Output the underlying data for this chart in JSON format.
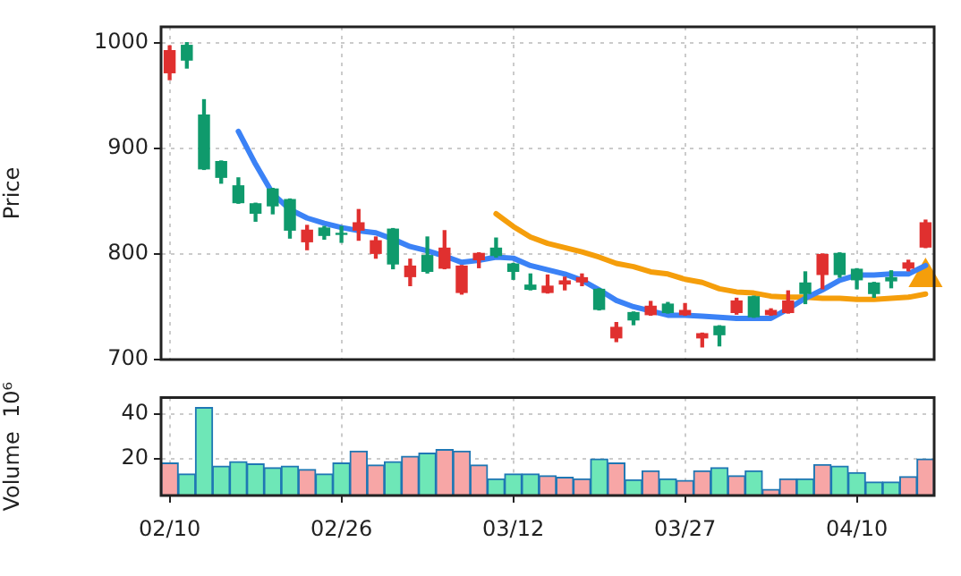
{
  "chart_data": [
    {
      "type": "candlestick",
      "ylabel": "Price",
      "categories": [
        null,
        null,
        null,
        null,
        null,
        null,
        null,
        null,
        null,
        null,
        null,
        null,
        null,
        null,
        null,
        null,
        null,
        null,
        null,
        null,
        null,
        null,
        null,
        null,
        null,
        null,
        null,
        null,
        null,
        null,
        null,
        null,
        null,
        null,
        null,
        null,
        null,
        null,
        null,
        null,
        null,
        null,
        null,
        null,
        null
      ],
      "ohlc": [
        [
          993,
          997,
          965,
          971
        ],
        [
          983,
          1000,
          976,
          998
        ],
        [
          880,
          946,
          880,
          932
        ],
        [
          872,
          888,
          867,
          888
        ],
        [
          848,
          872,
          848,
          865
        ],
        [
          838,
          848,
          831,
          848
        ],
        [
          845,
          862,
          838,
          862
        ],
        [
          822,
          852,
          815,
          852
        ],
        [
          823,
          827,
          804,
          811
        ],
        [
          817,
          826,
          814,
          825
        ],
        [
          818,
          826,
          811,
          820
        ],
        [
          830,
          842,
          813,
          822
        ],
        [
          813,
          816,
          796,
          800
        ],
        [
          790,
          824,
          786,
          824
        ],
        [
          789,
          795,
          770,
          778
        ],
        [
          783,
          816,
          782,
          799
        ],
        [
          806,
          822,
          786,
          786
        ],
        [
          789,
          789,
          762,
          763
        ],
        [
          801,
          801,
          787,
          794
        ],
        [
          798,
          815,
          797,
          806
        ],
        [
          783,
          791,
          776,
          791
        ],
        [
          766,
          781,
          766,
          771
        ],
        [
          770,
          780,
          763,
          763
        ],
        [
          775,
          778,
          766,
          771
        ],
        [
          778,
          781,
          770,
          773
        ],
        [
          747,
          767,
          747,
          767
        ],
        [
          731,
          735,
          717,
          720
        ],
        [
          737,
          745,
          733,
          745
        ],
        [
          751,
          755,
          742,
          742
        ],
        [
          744,
          754,
          744,
          753
        ],
        [
          747,
          753,
          742,
          742
        ],
        [
          725,
          725,
          712,
          720
        ],
        [
          723,
          732,
          713,
          732
        ],
        [
          756,
          758,
          743,
          744
        ],
        [
          740,
          760,
          740,
          760
        ],
        [
          747,
          748,
          742,
          742
        ],
        [
          756,
          765,
          744,
          744
        ],
        [
          762,
          783,
          753,
          773
        ],
        [
          800,
          800,
          767,
          780
        ],
        [
          780,
          801,
          778,
          801
        ],
        [
          775,
          786,
          767,
          786
        ],
        [
          762,
          773,
          759,
          773
        ],
        [
          774,
          784,
          768,
          778
        ],
        [
          792,
          794,
          784,
          786
        ],
        [
          830,
          832,
          806,
          806
        ]
      ],
      "colors": [
        "#e0302f",
        "#0f9a6c",
        "#0f9a6c",
        "#0f9a6c",
        "#0f9a6c",
        "#0f9a6c",
        "#0f9a6c",
        "#0f9a6c",
        "#e0302f",
        "#0f9a6c",
        "#0f9a6c",
        "#e0302f",
        "#e0302f",
        "#0f9a6c",
        "#e0302f",
        "#0f9a6c",
        "#e0302f",
        "#e0302f",
        "#e0302f",
        "#0f9a6c",
        "#0f9a6c",
        "#0f9a6c",
        "#e0302f",
        "#e0302f",
        "#e0302f",
        "#0f9a6c",
        "#e0302f",
        "#0f9a6c",
        "#e0302f",
        "#0f9a6c",
        "#e0302f",
        "#e0302f",
        "#0f9a6c",
        "#e0302f",
        "#0f9a6c",
        "#e0302f",
        "#e0302f",
        "#0f9a6c",
        "#e0302f",
        "#0f9a6c",
        "#0f9a6c",
        "#0f9a6c",
        "#0f9a6c",
        "#e0302f",
        "#e0302f"
      ],
      "series": [
        {
          "type": "line",
          "color": "#3b82f6",
          "marker": "none",
          "values": [
            null,
            null,
            null,
            null,
            916,
            885,
            857,
            842,
            834,
            829,
            825,
            822,
            820,
            814,
            807,
            803,
            798,
            792,
            794,
            797,
            796,
            789,
            785,
            781,
            775,
            766,
            756,
            750,
            746,
            742,
            742,
            741,
            740,
            739,
            739,
            739,
            748,
            758,
            766,
            775,
            780,
            780,
            781,
            781,
            789
          ]
        },
        {
          "type": "line",
          "color": "#f59e0b",
          "marker": "none",
          "values": [
            null,
            null,
            null,
            null,
            null,
            null,
            null,
            null,
            null,
            null,
            null,
            null,
            null,
            null,
            null,
            null,
            null,
            null,
            null,
            838,
            826,
            816,
            810,
            806,
            802,
            797,
            791,
            788,
            783,
            781,
            776,
            773,
            767,
            764,
            763,
            760,
            759,
            759,
            758,
            758,
            757,
            757,
            758,
            759,
            762
          ]
        },
        {
          "type": "scatter",
          "color": "#f59e0b",
          "marker": "triangle",
          "values": [
            null,
            null,
            null,
            null,
            null,
            null,
            null,
            null,
            null,
            null,
            null,
            null,
            null,
            null,
            null,
            null,
            null,
            null,
            null,
            null,
            null,
            null,
            null,
            null,
            null,
            null,
            null,
            null,
            null,
            null,
            null,
            null,
            null,
            null,
            null,
            null,
            null,
            null,
            null,
            null,
            null,
            null,
            null,
            null,
            778
          ]
        }
      ],
      "ylim": [
        700,
        1015
      ],
      "yticks": [
        700,
        800,
        900,
        1000
      ],
      "grid": true,
      "tick_labels": "y"
    },
    {
      "type": "bar",
      "ylabel": "Volume  10⁶",
      "categories": [
        "02/10",
        null,
        null,
        null,
        null,
        null,
        null,
        null,
        null,
        null,
        "02/26",
        null,
        null,
        null,
        null,
        null,
        null,
        null,
        null,
        null,
        "03/12",
        null,
        null,
        null,
        null,
        null,
        null,
        null,
        null,
        null,
        "03/27",
        null,
        null,
        null,
        null,
        null,
        null,
        null,
        null,
        null,
        "04/10",
        null,
        null,
        null,
        null
      ],
      "values": [
        18,
        13,
        43,
        16.5,
        18.6,
        17.6,
        15.8,
        16.5,
        15,
        13,
        18,
        23.3,
        17,
        18.6,
        21,
        22.4,
        24,
        23.3,
        17,
        10.8,
        13,
        13,
        12.2,
        11.5,
        10.8,
        19.8,
        18,
        10.4,
        14.4,
        10.8,
        10.1,
        14.4,
        15.8,
        12.2,
        14.4,
        6.1,
        10.8,
        10.8,
        17.2,
        16.5,
        13.6,
        9.4,
        9.4,
        11.8,
        19.8
      ],
      "colors": [
        "#f7a6a6",
        "#6ee7b7",
        "#6ee7b7",
        "#6ee7b7",
        "#6ee7b7",
        "#6ee7b7",
        "#6ee7b7",
        "#6ee7b7",
        "#f7a6a6",
        "#6ee7b7",
        "#6ee7b7",
        "#f7a6a6",
        "#f7a6a6",
        "#6ee7b7",
        "#f7a6a6",
        "#6ee7b7",
        "#f7a6a6",
        "#f7a6a6",
        "#f7a6a6",
        "#6ee7b7",
        "#6ee7b7",
        "#6ee7b7",
        "#f7a6a6",
        "#f7a6a6",
        "#f7a6a6",
        "#6ee7b7",
        "#f7a6a6",
        "#6ee7b7",
        "#f7a6a6",
        "#6ee7b7",
        "#f7a6a6",
        "#f7a6a6",
        "#6ee7b7",
        "#f7a6a6",
        "#6ee7b7",
        "#f7a6a6",
        "#f7a6a6",
        "#6ee7b7",
        "#f7a6a6",
        "#6ee7b7",
        "#6ee7b7",
        "#6ee7b7",
        "#6ee7b7",
        "#f7a6a6",
        "#f7a6a6"
      ],
      "ylim": [
        3.3,
        47.5
      ],
      "yticks": [
        20,
        40
      ],
      "grid": true
    }
  ]
}
